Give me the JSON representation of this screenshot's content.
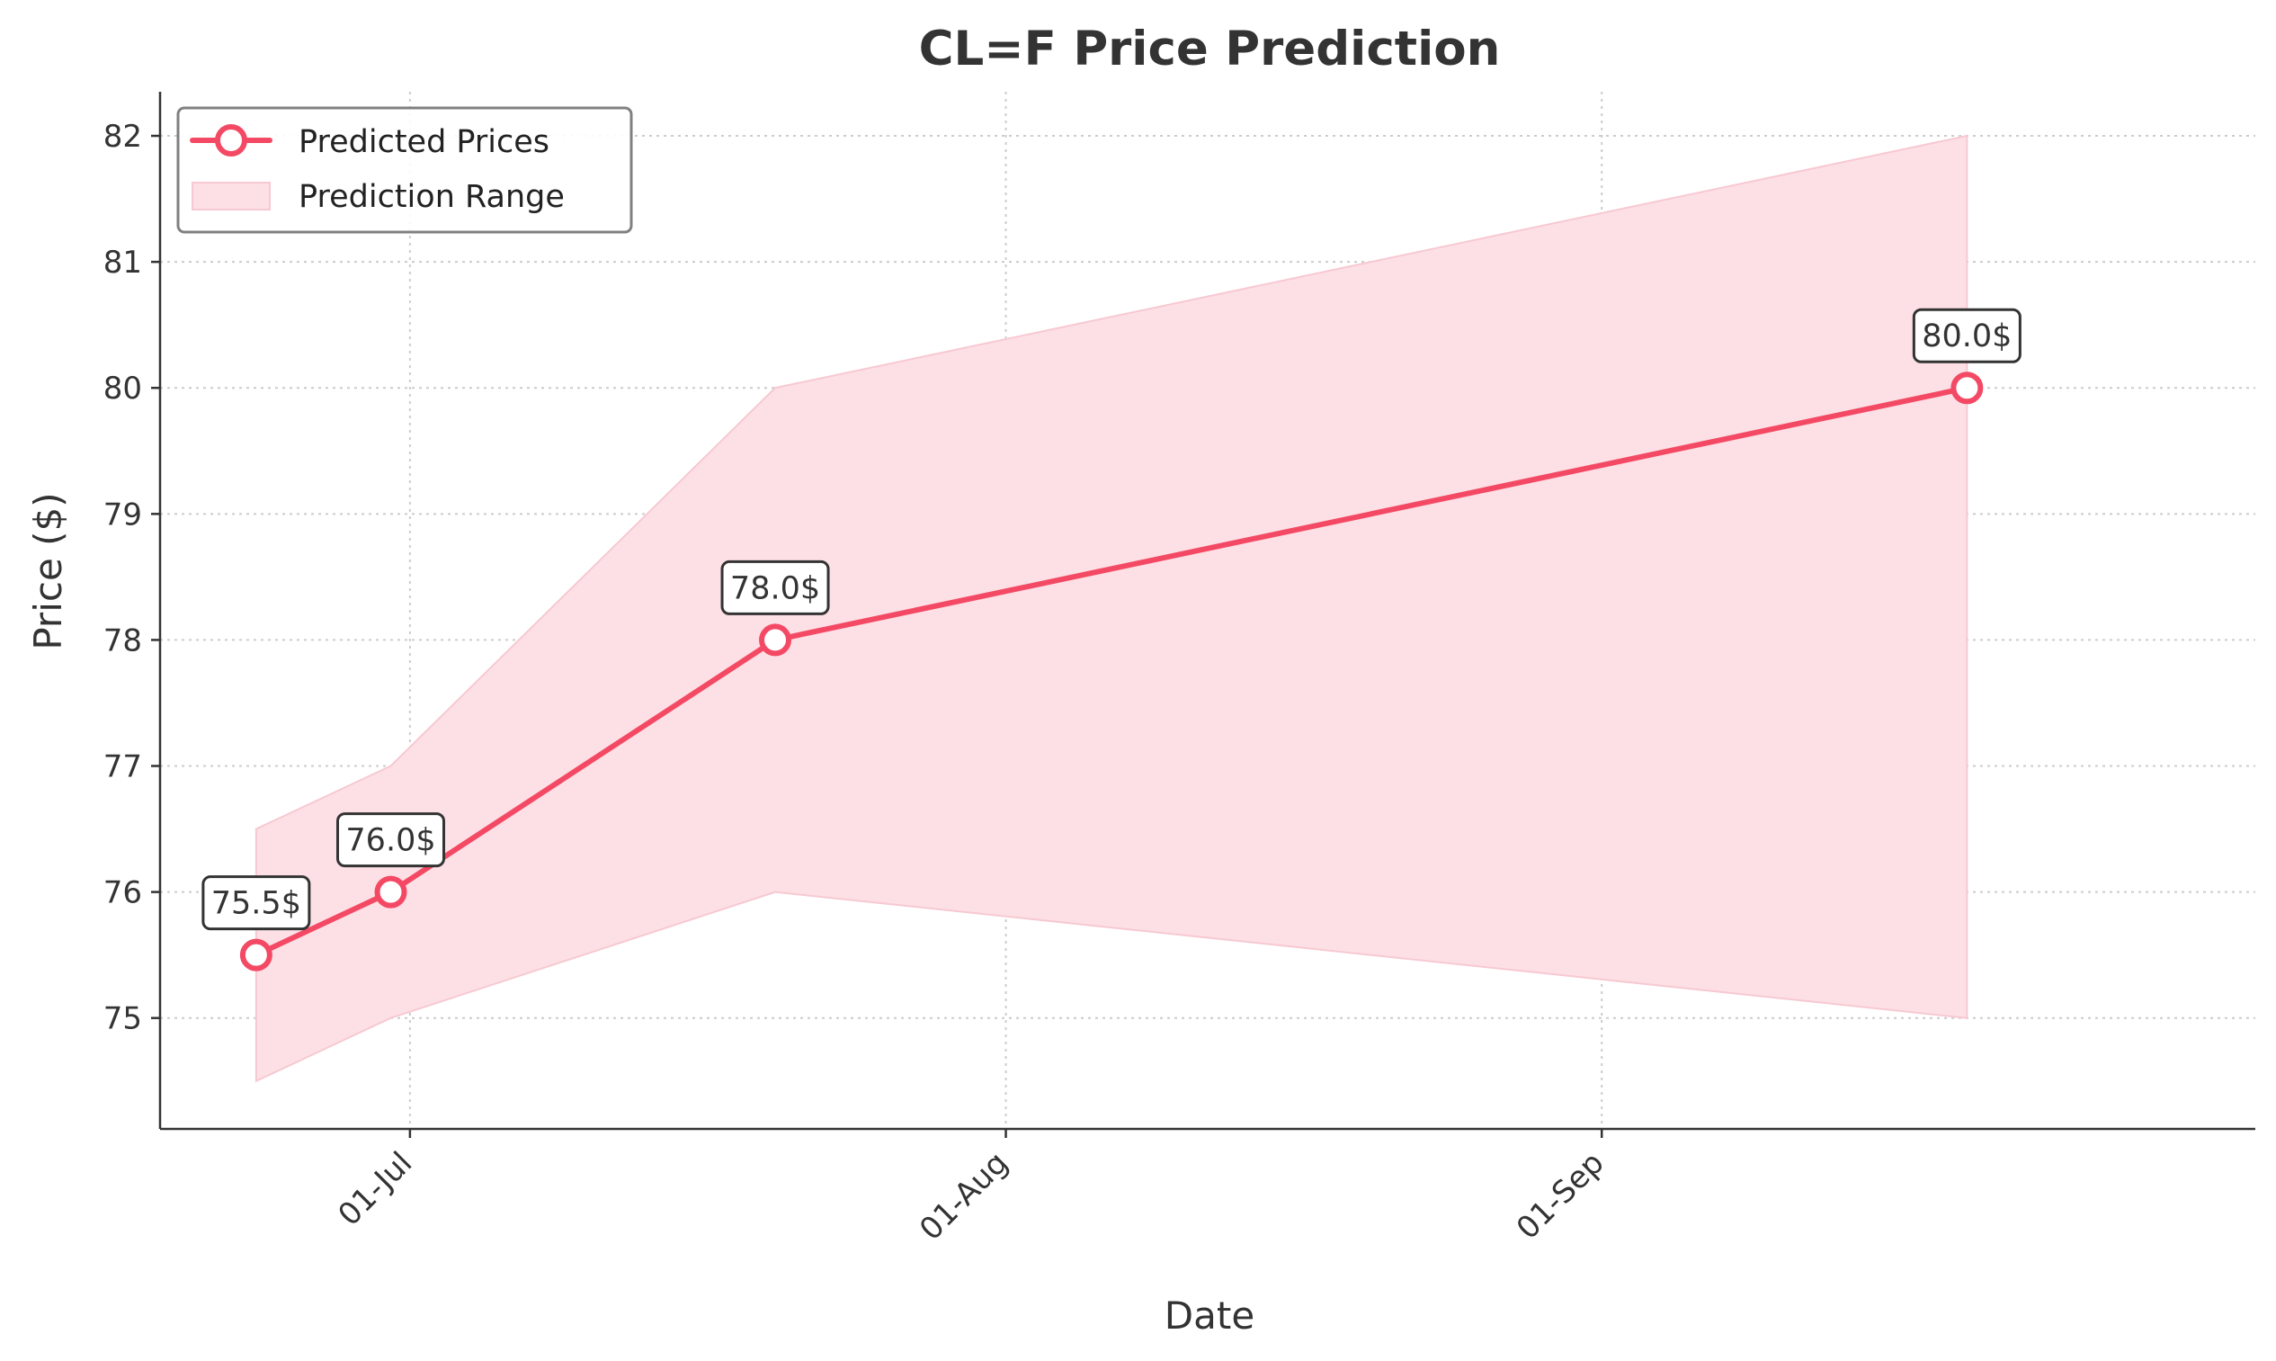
{
  "chart_data": {
    "type": "line",
    "title": "CL=F Price Prediction",
    "xlabel": "Date",
    "ylabel": "Price ($)",
    "x_ticks": [
      {
        "date": "2024-07-01",
        "label": "01-Jul"
      },
      {
        "date": "2024-08-01",
        "label": "01-Aug"
      },
      {
        "date": "2024-09-01",
        "label": "01-Sep"
      }
    ],
    "y_ticks": [
      75,
      76,
      77,
      78,
      79,
      80,
      81,
      82
    ],
    "xlim": [
      "2024-06-18",
      "2024-10-05"
    ],
    "ylim": [
      74.12,
      82.35
    ],
    "grid": true,
    "legend_position": "top-left",
    "series": [
      {
        "name": "Predicted Prices",
        "color": "#f44964",
        "points": [
          {
            "x": "2024-06-23",
            "y": 75.5,
            "label": "75.5$"
          },
          {
            "x": "2024-06-30",
            "y": 76.0,
            "label": "76.0$"
          },
          {
            "x": "2024-07-20",
            "y": 78.0,
            "label": "78.0$"
          },
          {
            "x": "2024-09-20",
            "y": 80.0,
            "label": "80.0$"
          }
        ]
      }
    ],
    "range": {
      "name": "Prediction Range",
      "color": "#fde0e5",
      "points": [
        {
          "x": "2024-06-23",
          "low": 74.5,
          "high": 76.5
        },
        {
          "x": "2024-06-30",
          "low": 75.0,
          "high": 77.0
        },
        {
          "x": "2024-07-20",
          "low": 76.0,
          "high": 80.0
        },
        {
          "x": "2024-09-20",
          "low": 75.0,
          "high": 82.0
        }
      ]
    }
  }
}
